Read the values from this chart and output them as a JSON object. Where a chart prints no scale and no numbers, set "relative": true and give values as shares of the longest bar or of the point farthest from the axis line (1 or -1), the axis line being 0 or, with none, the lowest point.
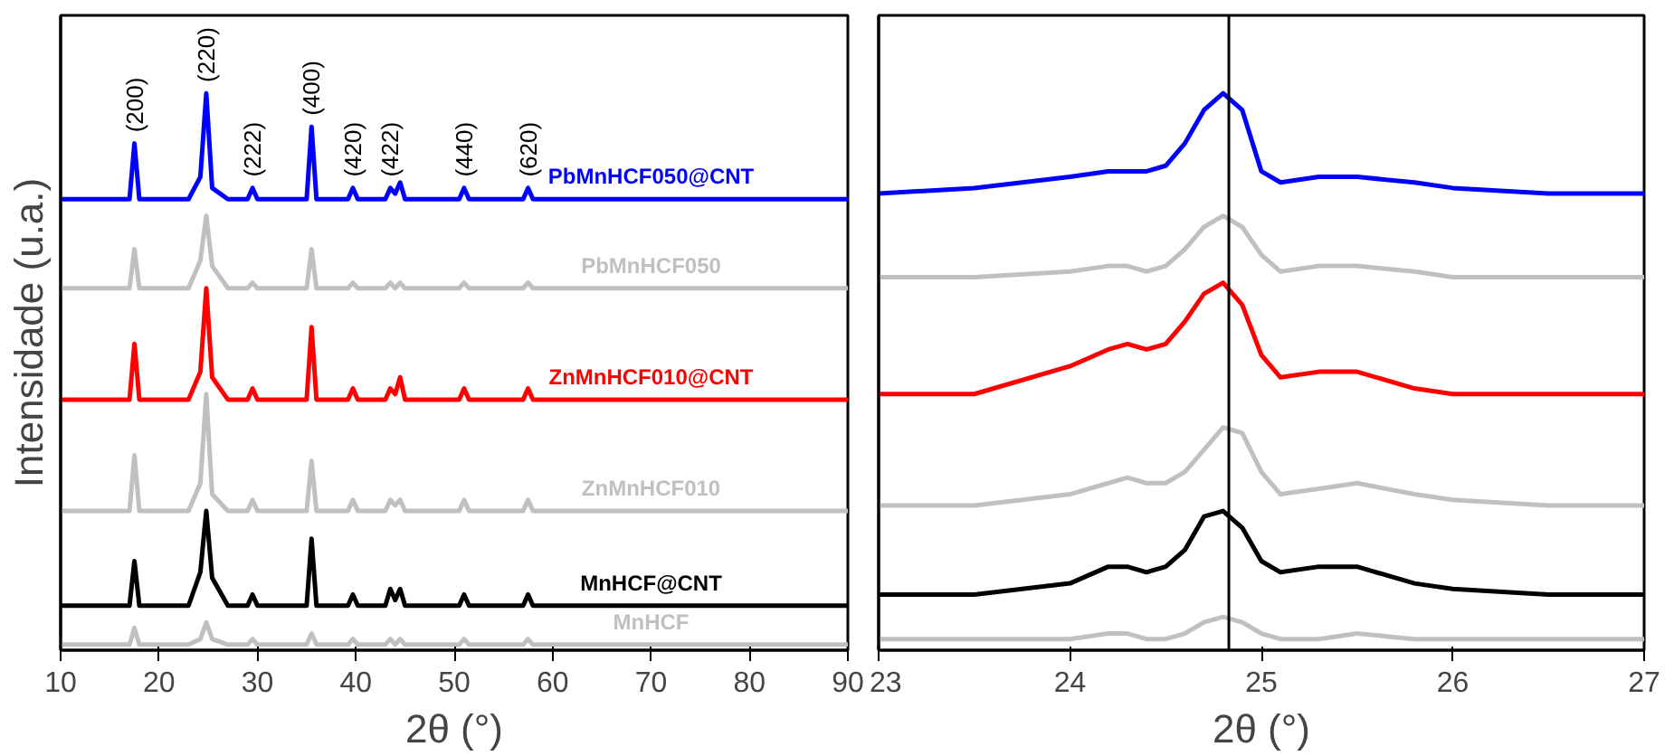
{
  "chart_data": [
    {
      "type": "line",
      "relative": true,
      "xlabel": "2θ (°)",
      "ylabel": "Intensidade (u.a.)",
      "xlim": [
        10,
        90
      ],
      "xticks": [
        10,
        20,
        30,
        40,
        50,
        60,
        70,
        80,
        90
      ],
      "tick_labels": "x",
      "grid": false,
      "x": [
        10,
        15,
        17,
        17.5,
        18,
        20,
        23,
        24.2,
        24.8,
        25.4,
        27,
        29,
        29.5,
        30,
        33,
        35,
        35.5,
        36,
        39.2,
        39.7,
        40.2,
        43,
        43.5,
        44,
        44.5,
        45,
        50.5,
        51,
        51.5,
        57,
        57.5,
        58,
        65,
        75,
        90
      ],
      "series": [
        {
          "name": "PbMnHCF050@CNT",
          "color": "#0000ff",
          "values": [
            0.81,
            0.81,
            0.81,
            0.91,
            0.81,
            0.81,
            0.81,
            0.85,
            1.0,
            0.83,
            0.81,
            0.81,
            0.83,
            0.81,
            0.81,
            0.81,
            0.94,
            0.81,
            0.81,
            0.83,
            0.81,
            0.81,
            0.83,
            0.82,
            0.84,
            0.81,
            0.81,
            0.83,
            0.81,
            0.81,
            0.83,
            0.81,
            0.81,
            0.81,
            0.81
          ]
        },
        {
          "name": "PbMnHCF050",
          "color": "#c0c0c0",
          "values": [
            0.65,
            0.65,
            0.65,
            0.72,
            0.65,
            0.65,
            0.65,
            0.7,
            0.78,
            0.69,
            0.65,
            0.65,
            0.66,
            0.65,
            0.65,
            0.65,
            0.72,
            0.65,
            0.65,
            0.66,
            0.65,
            0.65,
            0.66,
            0.65,
            0.66,
            0.65,
            0.65,
            0.66,
            0.65,
            0.65,
            0.66,
            0.65,
            0.65,
            0.65,
            0.65
          ]
        },
        {
          "name": "ZnMnHCF010@CNT",
          "color": "#ff0000",
          "values": [
            0.45,
            0.45,
            0.45,
            0.55,
            0.45,
            0.45,
            0.45,
            0.5,
            0.65,
            0.49,
            0.45,
            0.45,
            0.47,
            0.45,
            0.45,
            0.45,
            0.58,
            0.45,
            0.45,
            0.47,
            0.45,
            0.45,
            0.47,
            0.46,
            0.49,
            0.45,
            0.45,
            0.47,
            0.45,
            0.45,
            0.47,
            0.45,
            0.45,
            0.45,
            0.45
          ]
        },
        {
          "name": "ZnMnHCF010",
          "color": "#c0c0c0",
          "values": [
            0.25,
            0.25,
            0.25,
            0.35,
            0.25,
            0.25,
            0.25,
            0.3,
            0.46,
            0.28,
            0.25,
            0.25,
            0.27,
            0.25,
            0.25,
            0.25,
            0.34,
            0.25,
            0.25,
            0.27,
            0.25,
            0.25,
            0.27,
            0.26,
            0.27,
            0.25,
            0.25,
            0.27,
            0.25,
            0.25,
            0.27,
            0.25,
            0.25,
            0.25,
            0.25
          ]
        },
        {
          "name": "MnHCF@CNT",
          "color": "#000000",
          "values": [
            0.08,
            0.08,
            0.08,
            0.16,
            0.08,
            0.08,
            0.08,
            0.14,
            0.25,
            0.13,
            0.08,
            0.08,
            0.1,
            0.08,
            0.08,
            0.08,
            0.2,
            0.08,
            0.08,
            0.1,
            0.08,
            0.08,
            0.11,
            0.09,
            0.11,
            0.08,
            0.08,
            0.1,
            0.08,
            0.08,
            0.1,
            0.08,
            0.08,
            0.08,
            0.08
          ]
        },
        {
          "name": "MnHCF",
          "color": "#c0c0c0",
          "values": [
            0.01,
            0.01,
            0.01,
            0.04,
            0.01,
            0.01,
            0.01,
            0.02,
            0.05,
            0.02,
            0.01,
            0.01,
            0.02,
            0.01,
            0.01,
            0.01,
            0.03,
            0.01,
            0.01,
            0.02,
            0.01,
            0.01,
            0.02,
            0.01,
            0.02,
            0.01,
            0.01,
            0.02,
            0.01,
            0.01,
            0.02,
            0.01,
            0.01,
            0.01,
            0.01
          ]
        }
      ],
      "annotations": [
        {
          "text": "(200)",
          "x": 17.5,
          "y": 0.91
        },
        {
          "text": "(220)",
          "x": 24.8,
          "y": 1.0
        },
        {
          "text": "(222)",
          "x": 29.5,
          "y": 0.83
        },
        {
          "text": "(400)",
          "x": 35.5,
          "y": 0.94
        },
        {
          "text": "(420)",
          "x": 39.7,
          "y": 0.83
        },
        {
          "text": "(422)",
          "x": 43.5,
          "y": 0.83
        },
        {
          "text": "(440)",
          "x": 51,
          "y": 0.83
        },
        {
          "text": "(620)",
          "x": 57.5,
          "y": 0.83
        }
      ]
    },
    {
      "type": "line",
      "relative": true,
      "xlabel": "2θ (°)",
      "xlim": [
        23,
        27
      ],
      "xticks": [
        23,
        24,
        25,
        26,
        27
      ],
      "tick_labels": "x",
      "grid": false,
      "x": [
        23,
        23.5,
        24,
        24.2,
        24.3,
        24.4,
        24.5,
        24.6,
        24.7,
        24.8,
        24.9,
        25.0,
        25.1,
        25.3,
        25.5,
        25.8,
        26,
        26.5,
        27
      ],
      "series": [
        {
          "color": "#0000ff",
          "values": [
            0.82,
            0.83,
            0.85,
            0.86,
            0.86,
            0.86,
            0.87,
            0.91,
            0.97,
            1.0,
            0.97,
            0.86,
            0.84,
            0.85,
            0.85,
            0.84,
            0.83,
            0.82,
            0.82
          ]
        },
        {
          "color": "#c0c0c0",
          "values": [
            0.67,
            0.67,
            0.68,
            0.69,
            0.69,
            0.68,
            0.69,
            0.72,
            0.76,
            0.78,
            0.76,
            0.71,
            0.68,
            0.69,
            0.69,
            0.68,
            0.67,
            0.67,
            0.67
          ]
        },
        {
          "color": "#ff0000",
          "values": [
            0.46,
            0.46,
            0.51,
            0.54,
            0.55,
            0.54,
            0.55,
            0.59,
            0.64,
            0.66,
            0.62,
            0.53,
            0.49,
            0.5,
            0.5,
            0.47,
            0.46,
            0.46,
            0.46
          ]
        },
        {
          "color": "#c0c0c0",
          "values": [
            0.26,
            0.26,
            0.28,
            0.3,
            0.31,
            0.3,
            0.3,
            0.32,
            0.36,
            0.4,
            0.39,
            0.32,
            0.28,
            0.29,
            0.3,
            0.28,
            0.27,
            0.26,
            0.26
          ]
        },
        {
          "color": "#000000",
          "values": [
            0.1,
            0.1,
            0.12,
            0.15,
            0.15,
            0.14,
            0.15,
            0.18,
            0.24,
            0.25,
            0.22,
            0.16,
            0.14,
            0.15,
            0.15,
            0.12,
            0.11,
            0.1,
            0.1
          ]
        },
        {
          "color": "#c0c0c0",
          "values": [
            0.02,
            0.02,
            0.02,
            0.03,
            0.03,
            0.02,
            0.02,
            0.03,
            0.05,
            0.06,
            0.05,
            0.03,
            0.02,
            0.02,
            0.03,
            0.02,
            0.02,
            0.02,
            0.02
          ]
        }
      ],
      "ref_lines": [
        {
          "axis": "x",
          "value": 24.83,
          "color": "#000000"
        }
      ]
    }
  ]
}
